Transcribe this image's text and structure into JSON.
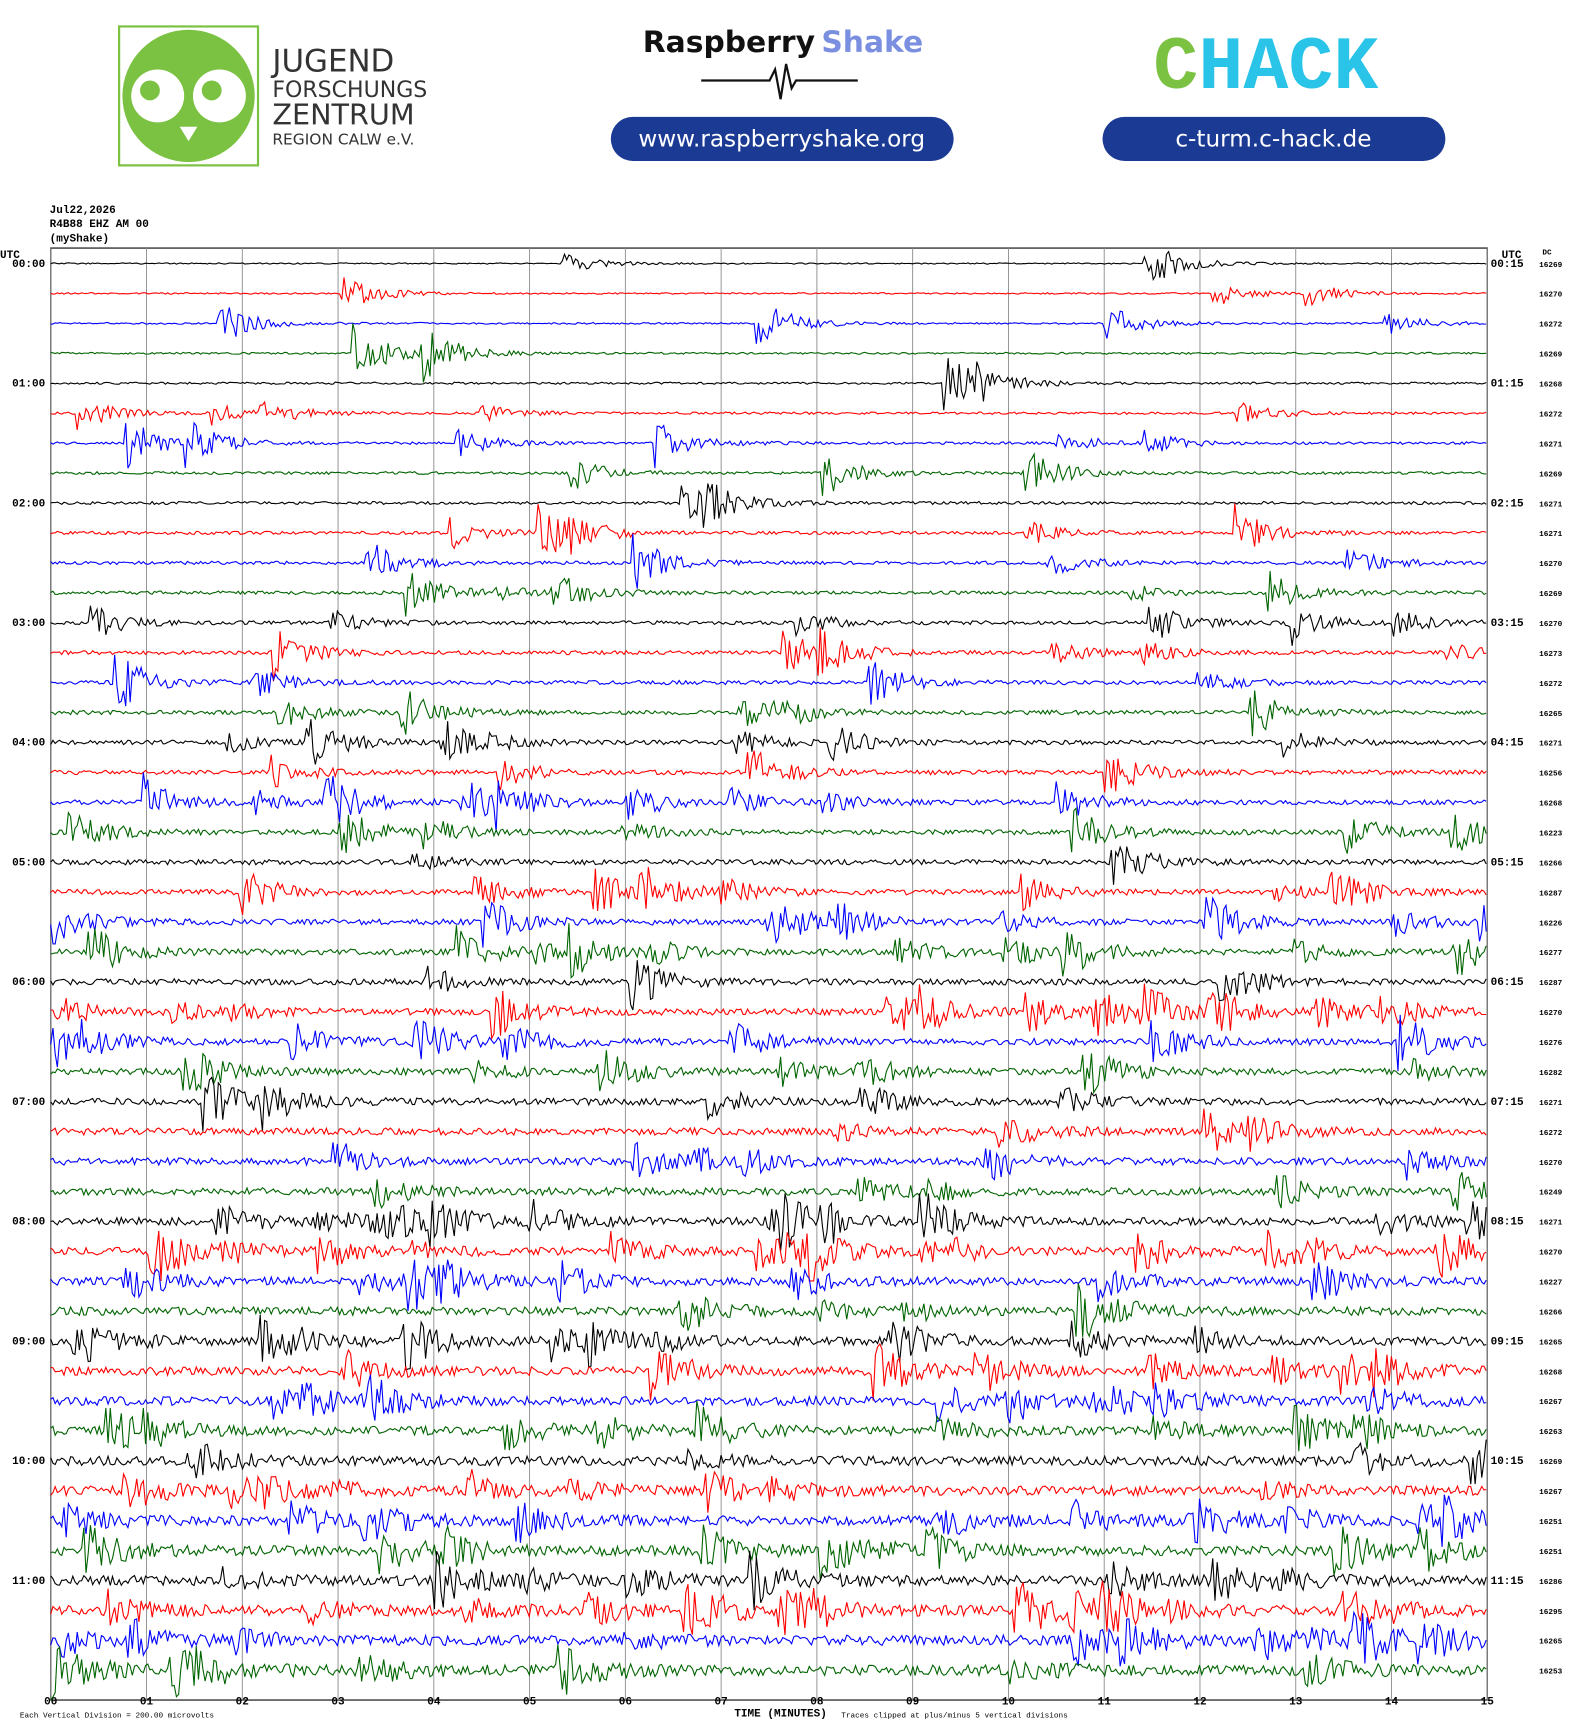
{
  "logos": {
    "jfz": [
      "JUGEND",
      "FORSCHUNGS",
      "ZENTRUM",
      "REGION CALW e.V."
    ],
    "raspberry": {
      "word1": "Raspberry",
      "word2": "Shake",
      "url": "www.raspberryshake.org"
    },
    "chack": {
      "c": "C",
      "rest": "HACK",
      "url": "c-turm.c-hack.de"
    }
  },
  "header": {
    "date": "Jul22,2026",
    "station": "R4B88 EHZ AM 00",
    "source": "(myShake)"
  },
  "axes": {
    "left_title": "UTC",
    "right_title": "UTC",
    "dc_title": "DC",
    "left_times": [
      "00:00",
      "01:00",
      "02:00",
      "03:00",
      "04:00",
      "05:00",
      "06:00",
      "07:00",
      "08:00",
      "09:00",
      "10:00",
      "11:00"
    ],
    "right_times": [
      "00:15",
      "01:15",
      "02:15",
      "03:15",
      "04:15",
      "05:15",
      "06:15",
      "07:15",
      "08:15",
      "09:15",
      "10:15",
      "11:15"
    ],
    "x_ticks": [
      "00",
      "01",
      "02",
      "03",
      "04",
      "05",
      "06",
      "07",
      "08",
      "09",
      "10",
      "11",
      "12",
      "13",
      "14",
      "15"
    ],
    "x_title": "TIME (MINUTES)"
  },
  "dc_offsets": [
    16269,
    16270,
    16272,
    16269,
    16268,
    16272,
    16271,
    16269,
    16271,
    16271,
    16270,
    16269,
    16270,
    16273,
    16272,
    16265,
    16271,
    16256,
    16268,
    16223,
    16266,
    16287,
    16226,
    16277,
    16287,
    16270,
    16276,
    16282,
    16271,
    16272,
    16270,
    16249,
    16271,
    16270,
    16227,
    16266,
    16265,
    16268,
    16267,
    16263,
    16269,
    16267,
    16251,
    16251,
    16286,
    16295,
    16265,
    16253
  ],
  "trace_colors": [
    "#000000",
    "#ff0000",
    "#0000ff",
    "#006400"
  ],
  "footer": {
    "scale": "Each Vertical Division =  200.00 microvolts",
    "clip": "Traces clipped at plus/minus 5 vertical divisions"
  }
}
